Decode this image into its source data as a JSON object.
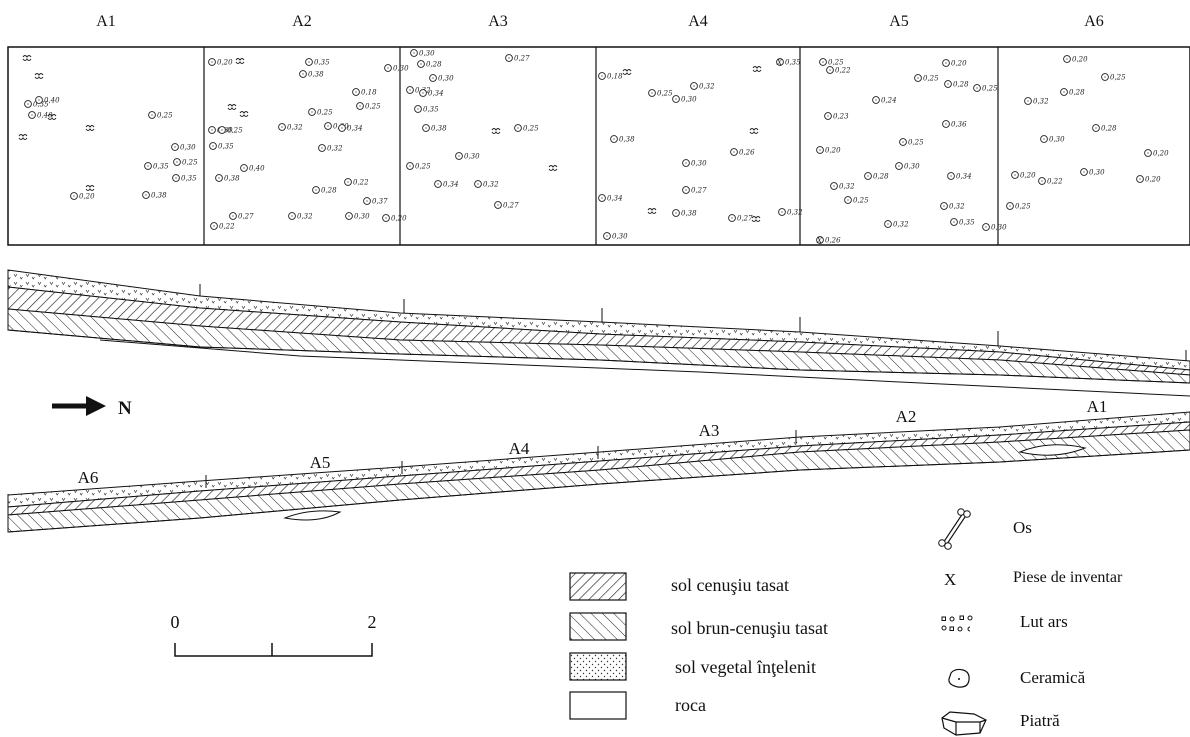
{
  "squares": [
    {
      "label": "A1",
      "finds": [
        {
          "t": "b"
        },
        {
          "t": "b"
        },
        {
          "t": "c",
          "v": "0,35"
        },
        {
          "t": "c",
          "v": "0,40"
        },
        {
          "t": "c",
          "v": "0,40"
        },
        {
          "t": "b"
        },
        {
          "t": "b"
        },
        {
          "t": "c",
          "v": "0,25"
        },
        {
          "t": "b"
        },
        {
          "t": "c",
          "v": "0,30"
        },
        {
          "t": "c",
          "v": "0,35"
        },
        {
          "t": "c",
          "v": "0,25"
        },
        {
          "t": "c",
          "v": "0,35"
        },
        {
          "t": "b"
        },
        {
          "t": "c",
          "v": "0,20"
        },
        {
          "t": "c",
          "v": "0,38"
        }
      ]
    },
    {
      "label": "A2",
      "finds": [
        {
          "t": "c",
          "v": "0,20"
        },
        {
          "t": "b"
        },
        {
          "t": "c",
          "v": "0,35"
        },
        {
          "t": "c",
          "v": "0,38"
        },
        {
          "t": "c",
          "v": "0,30"
        },
        {
          "t": "c",
          "v": "0,18"
        },
        {
          "t": "b"
        },
        {
          "t": "b"
        },
        {
          "t": "c",
          "v": "0,25"
        },
        {
          "t": "c",
          "v": "0,25"
        },
        {
          "t": "c",
          "v": "0,30"
        },
        {
          "t": "c",
          "v": "0,25"
        },
        {
          "t": "c",
          "v": "0,32"
        },
        {
          "t": "c",
          "v": "0,30"
        },
        {
          "t": "c",
          "v": "0,34"
        },
        {
          "t": "c",
          "v": "0,35"
        },
        {
          "t": "c",
          "v": "0,32"
        },
        {
          "t": "c",
          "v": "0,40"
        },
        {
          "t": "c",
          "v": "0,38"
        },
        {
          "t": "c",
          "v": "0,28"
        },
        {
          "t": "c",
          "v": "0,22"
        },
        {
          "t": "c",
          "v": "0,37"
        },
        {
          "t": "c",
          "v": "0,27"
        },
        {
          "t": "c",
          "v": "0,32"
        },
        {
          "t": "c",
          "v": "0,30"
        },
        {
          "t": "c",
          "v": "0,20"
        },
        {
          "t": "c",
          "v": "0,22"
        }
      ]
    },
    {
      "label": "A3",
      "finds": [
        {
          "t": "c",
          "v": "0,30"
        },
        {
          "t": "c",
          "v": "0,28"
        },
        {
          "t": "c",
          "v": "0,32"
        },
        {
          "t": "c",
          "v": "0,34"
        },
        {
          "t": "c",
          "v": "0,30"
        },
        {
          "t": "c",
          "v": "0,35"
        },
        {
          "t": "c",
          "v": "0,27"
        },
        {
          "t": "c",
          "v": "0,38"
        },
        {
          "t": "b"
        },
        {
          "t": "c",
          "v": "0,25"
        },
        {
          "t": "b"
        },
        {
          "t": "c",
          "v": "0,30"
        },
        {
          "t": "c",
          "v": "0,25"
        },
        {
          "t": "c",
          "v": "0,34"
        },
        {
          "t": "c",
          "v": "0,32"
        },
        {
          "t": "c",
          "v": "0,27"
        }
      ]
    },
    {
      "label": "A4",
      "finds": [
        {
          "t": "c",
          "v": "0,18"
        },
        {
          "t": "b"
        },
        {
          "t": "c",
          "v": "0,25"
        },
        {
          "t": "c",
          "v": "0,30"
        },
        {
          "t": "c",
          "v": "0,32"
        },
        {
          "t": "x",
          "v": "0,35"
        },
        {
          "t": "b"
        },
        {
          "t": "c",
          "v": "0,38"
        },
        {
          "t": "b"
        },
        {
          "t": "c",
          "v": "0,26"
        },
        {
          "t": "c",
          "v": "0,30"
        },
        {
          "t": "c",
          "v": "0,27"
        },
        {
          "t": "c",
          "v": "0,34"
        },
        {
          "t": "b"
        },
        {
          "t": "c",
          "v": "0,38"
        },
        {
          "t": "c",
          "v": "0,27"
        },
        {
          "t": "c",
          "v": "0,32"
        },
        {
          "t": "b"
        },
        {
          "t": "c",
          "v": "0,30"
        }
      ]
    },
    {
      "label": "A5",
      "finds": [
        {
          "t": "c",
          "v": "0,25"
        },
        {
          "t": "c",
          "v": "0,22"
        },
        {
          "t": "c",
          "v": "0,20"
        },
        {
          "t": "c",
          "v": "0,25"
        },
        {
          "t": "c",
          "v": "0,28"
        },
        {
          "t": "c",
          "v": "0,25"
        },
        {
          "t": "c",
          "v": "0,24"
        },
        {
          "t": "c",
          "v": "0,23"
        },
        {
          "t": "c",
          "v": "0,36"
        },
        {
          "t": "c",
          "v": "0,25"
        },
        {
          "t": "c",
          "v": "0,20"
        },
        {
          "t": "c",
          "v": "0,30"
        },
        {
          "t": "c",
          "v": "0,28"
        },
        {
          "t": "c",
          "v": "0,34"
        },
        {
          "t": "c",
          "v": "0,32"
        },
        {
          "t": "c",
          "v": "0,25"
        },
        {
          "t": "c",
          "v": "0,32"
        },
        {
          "t": "c",
          "v": "0,32"
        },
        {
          "t": "c",
          "v": "0,35"
        },
        {
          "t": "c",
          "v": "0,30"
        },
        {
          "t": "x",
          "v": "0,26"
        }
      ]
    },
    {
      "label": "A6",
      "finds": [
        {
          "t": "c",
          "v": "0,20"
        },
        {
          "t": "c",
          "v": "0,25"
        },
        {
          "t": "c",
          "v": "0,32"
        },
        {
          "t": "c",
          "v": "0,28"
        },
        {
          "t": "c",
          "v": "0,30"
        },
        {
          "t": "c",
          "v": "0,28"
        },
        {
          "t": "c",
          "v": "0,20"
        },
        {
          "t": "c",
          "v": "0,20"
        },
        {
          "t": "c",
          "v": "0,22"
        },
        {
          "t": "c",
          "v": "0,30"
        },
        {
          "t": "c",
          "v": "0,20"
        },
        {
          "t": "c",
          "v": "0,25"
        }
      ]
    }
  ],
  "profile_labels": [
    "A6",
    "A5",
    "A4",
    "A3",
    "A2",
    "A1"
  ],
  "north": "N",
  "scale": {
    "start": "0",
    "end": "2"
  },
  "legend_layers": [
    {
      "pattern": "hatch-right",
      "text": "sol cenuşiu tasat"
    },
    {
      "pattern": "hatch-left",
      "text": "sol brun-cenuşiu tasat"
    },
    {
      "pattern": "dots",
      "text": "sol vegetal înţelenit"
    },
    {
      "pattern": "none",
      "text": "roca"
    }
  ],
  "legend_symbols": [
    {
      "icon": "bone-icon",
      "text": "Os"
    },
    {
      "icon": "x-mark",
      "text": "Piese de inventar"
    },
    {
      "icon": "burnt-clay-icon",
      "text": "Lut ars"
    },
    {
      "icon": "ceramic-icon",
      "text": "Ceramică"
    },
    {
      "icon": "stone-icon",
      "text": "Piatră"
    }
  ],
  "x_mark": "X"
}
